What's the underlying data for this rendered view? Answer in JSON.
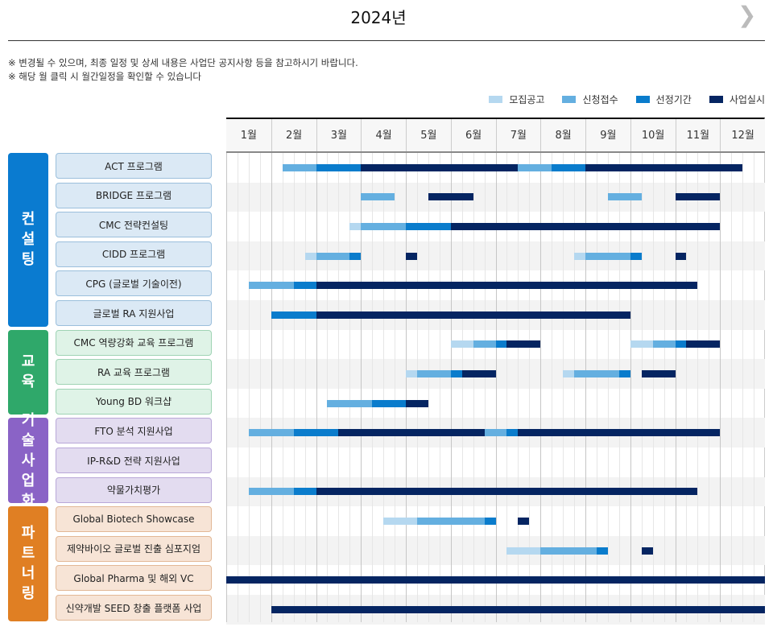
{
  "header": {
    "title": "2024년",
    "next_icon": "chevron-right-icon"
  },
  "notes": [
    "※ 변경될 수 있으며, 최종 일정 및 상세 내용은 사업단 공지사항 등을 참고하시기 바랍니다.",
    "※ 해당 월 클릭 시 월간일정을 확인할 수 있습니다"
  ],
  "chart_data": {
    "type": "gantt",
    "time_unit": "week (4 per month)",
    "months": [
      "1월",
      "2월",
      "3월",
      "4월",
      "5월",
      "6월",
      "7월",
      "8월",
      "9월",
      "10월",
      "11월",
      "12월"
    ],
    "legend": [
      {
        "key": "recruit",
        "label": "모집공고",
        "color": "#b5d8f0"
      },
      {
        "key": "apply",
        "label": "신청접수",
        "color": "#64afe0"
      },
      {
        "key": "select",
        "label": "선정기간",
        "color": "#0a7ccc"
      },
      {
        "key": "run",
        "label": "사업실시",
        "color": "#052562"
      }
    ],
    "groups": [
      {
        "label": "컨설팅",
        "color": "#0a7bd0",
        "bg": "#dbe9f5",
        "border": "#9bbfdc",
        "items": [
          {
            "name": "ACT 프로그램",
            "bars": [
              [
                "apply",
                5,
                8
              ],
              [
                "select",
                8,
                12
              ],
              [
                "run",
                12,
                26
              ],
              [
                "apply",
                26,
                29
              ],
              [
                "select",
                29,
                32
              ],
              [
                "run",
                32,
                46
              ]
            ]
          },
          {
            "name": "BRIDGE 프로그램",
            "bars": [
              [
                "apply",
                12,
                15
              ],
              [
                "run",
                18,
                22
              ],
              [
                "apply",
                34,
                37
              ],
              [
                "run",
                40,
                44
              ]
            ]
          },
          {
            "name": "CMC 전략컨설팅",
            "bars": [
              [
                "recruit",
                11,
                12
              ],
              [
                "apply",
                12,
                16
              ],
              [
                "select",
                16,
                20
              ],
              [
                "run",
                20,
                44
              ]
            ]
          },
          {
            "name": "CIDD 프로그램",
            "bars": [
              [
                "recruit",
                7,
                8
              ],
              [
                "apply",
                8,
                11
              ],
              [
                "select",
                11,
                12
              ],
              [
                "run",
                16,
                17
              ],
              [
                "recruit",
                31,
                32
              ],
              [
                "apply",
                32,
                36
              ],
              [
                "select",
                36,
                37
              ],
              [
                "run",
                40,
                41
              ]
            ]
          },
          {
            "name": "CPG (글로벌 기술이전)",
            "bars": [
              [
                "apply",
                2,
                6
              ],
              [
                "select",
                6,
                8
              ],
              [
                "run",
                8,
                42
              ]
            ]
          },
          {
            "name": "글로벌 RA 지원사업",
            "bars": [
              [
                "select",
                4,
                8
              ],
              [
                "run",
                8,
                36
              ]
            ]
          }
        ]
      },
      {
        "label": "교육",
        "color": "#2fa86a",
        "bg": "#dff3e7",
        "border": "#9fd3b4",
        "items": [
          {
            "name": "CMC 역량강화 교육 프로그램",
            "bars": [
              [
                "recruit",
                20,
                22
              ],
              [
                "apply",
                22,
                24
              ],
              [
                "select",
                24,
                25
              ],
              [
                "run",
                25,
                28
              ],
              [
                "recruit",
                36,
                38
              ],
              [
                "apply",
                38,
                40
              ],
              [
                "select",
                40,
                41
              ],
              [
                "run",
                41,
                44
              ]
            ]
          },
          {
            "name": "RA 교육 프로그램",
            "bars": [
              [
                "recruit",
                16,
                17
              ],
              [
                "apply",
                17,
                20
              ],
              [
                "select",
                20,
                21
              ],
              [
                "run",
                21,
                24
              ],
              [
                "recruit",
                30,
                31
              ],
              [
                "apply",
                31,
                35
              ],
              [
                "select",
                35,
                36
              ],
              [
                "run",
                37,
                40
              ]
            ]
          },
          {
            "name": "Young BD 워크샵",
            "bars": [
              [
                "apply",
                9,
                13
              ],
              [
                "select",
                13,
                16
              ],
              [
                "run",
                16,
                18
              ]
            ]
          }
        ]
      },
      {
        "label": "기술사업화",
        "color": "#8a63c6",
        "bg": "#e3dcf0",
        "border": "#b9a8d8",
        "items": [
          {
            "name": "FTO 분석 지원사업",
            "bars": [
              [
                "apply",
                2,
                6
              ],
              [
                "select",
                6,
                10
              ],
              [
                "run",
                10,
                23
              ],
              [
                "apply",
                23,
                25
              ],
              [
                "select",
                25,
                26
              ],
              [
                "run",
                26,
                44
              ]
            ]
          },
          {
            "name": "IP-R&D 전략 지원사업",
            "bars": []
          },
          {
            "name": "약물가치평가",
            "bars": [
              [
                "apply",
                2,
                6
              ],
              [
                "select",
                6,
                8
              ],
              [
                "run",
                8,
                42
              ]
            ]
          }
        ]
      },
      {
        "label": "파트너링",
        "color": "#e07f23",
        "bg": "#f7e4d6",
        "border": "#e2b896",
        "items": [
          {
            "name": "Global Biotech Showcase",
            "bars": [
              [
                "recruit",
                14,
                17
              ],
              [
                "apply",
                17,
                23
              ],
              [
                "select",
                23,
                24
              ],
              [
                "run",
                26,
                27
              ]
            ]
          },
          {
            "name": "제약바이오 글로벌 진출 심포지엄",
            "bars": [
              [
                "recruit",
                25,
                28
              ],
              [
                "apply",
                28,
                33
              ],
              [
                "select",
                33,
                34
              ],
              [
                "run",
                37,
                38
              ]
            ]
          },
          {
            "name": "Global Pharma 및 해외 VC",
            "bars": [
              [
                "run",
                0,
                48
              ]
            ]
          },
          {
            "name": "신약개발 SEED 창출 플랫폼 사업",
            "bars": [
              [
                "run",
                4,
                48
              ]
            ]
          }
        ]
      }
    ]
  }
}
